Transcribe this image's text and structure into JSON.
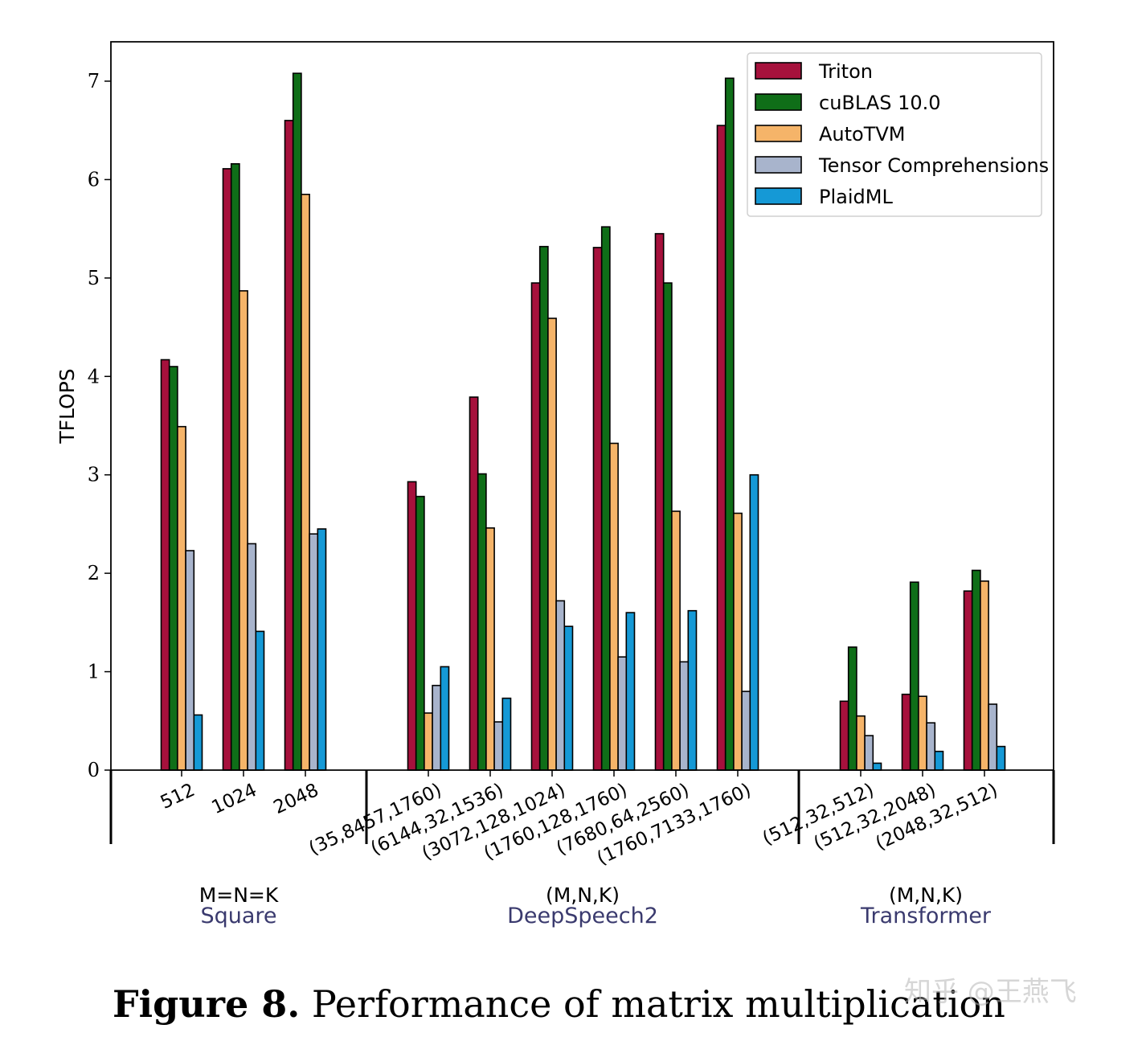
{
  "chart_data": {
    "type": "bar",
    "ylabel": "TFLOPS",
    "ylim": [
      0,
      7.4
    ],
    "yticks": [
      0,
      1,
      2,
      3,
      4,
      5,
      6,
      7
    ],
    "legend_position": "top-right",
    "series": [
      {
        "name": "Triton",
        "color": "#a6113c",
        "values": [
          4.17,
          6.11,
          6.6,
          2.93,
          3.79,
          4.95,
          5.31,
          5.45,
          6.55,
          0.7,
          0.77,
          1.82
        ]
      },
      {
        "name": "cuBLAS 10.0",
        "color": "#0f6e18",
        "values": [
          4.1,
          6.16,
          7.08,
          2.78,
          3.01,
          5.32,
          5.52,
          4.95,
          7.03,
          1.25,
          1.91,
          2.03
        ]
      },
      {
        "name": "AutoTVM",
        "color": "#f5b469",
        "values": [
          3.49,
          4.87,
          5.85,
          0.58,
          2.46,
          4.59,
          3.32,
          2.63,
          2.61,
          0.55,
          0.75,
          1.92
        ]
      },
      {
        "name": "Tensor Comprehensions",
        "color": "#a8b4cc",
        "values": [
          2.23,
          2.3,
          2.4,
          0.86,
          0.49,
          1.72,
          1.15,
          1.1,
          0.8,
          0.35,
          0.48,
          0.67
        ]
      },
      {
        "name": "PlaidML",
        "color": "#1599d6",
        "values": [
          0.56,
          1.41,
          2.45,
          1.05,
          0.73,
          1.46,
          1.6,
          1.62,
          3.0,
          0.07,
          0.19,
          0.24
        ]
      }
    ],
    "groups": [
      {
        "subtitle": "M=N=K",
        "name": "Square",
        "categories": [
          "512",
          "1024",
          "2048"
        ]
      },
      {
        "subtitle": "(M,N,K)",
        "name": "DeepSpeech2",
        "categories": [
          "(35,8457,1760)",
          "(6144,32,1536)",
          "(3072,128,1024)",
          "(1760,128,1760)",
          "(7680,64,2560)",
          "(1760,7133,1760)"
        ]
      },
      {
        "subtitle": "(M,N,K)",
        "name": "Transformer",
        "categories": [
          "(512,32,512)",
          "(512,32,2048)",
          "(2048,32,512)"
        ]
      }
    ]
  },
  "caption": {
    "label": "Figure 8.",
    "text": " Performance of matrix multiplication"
  },
  "watermark": "知乎 @王燕飞"
}
